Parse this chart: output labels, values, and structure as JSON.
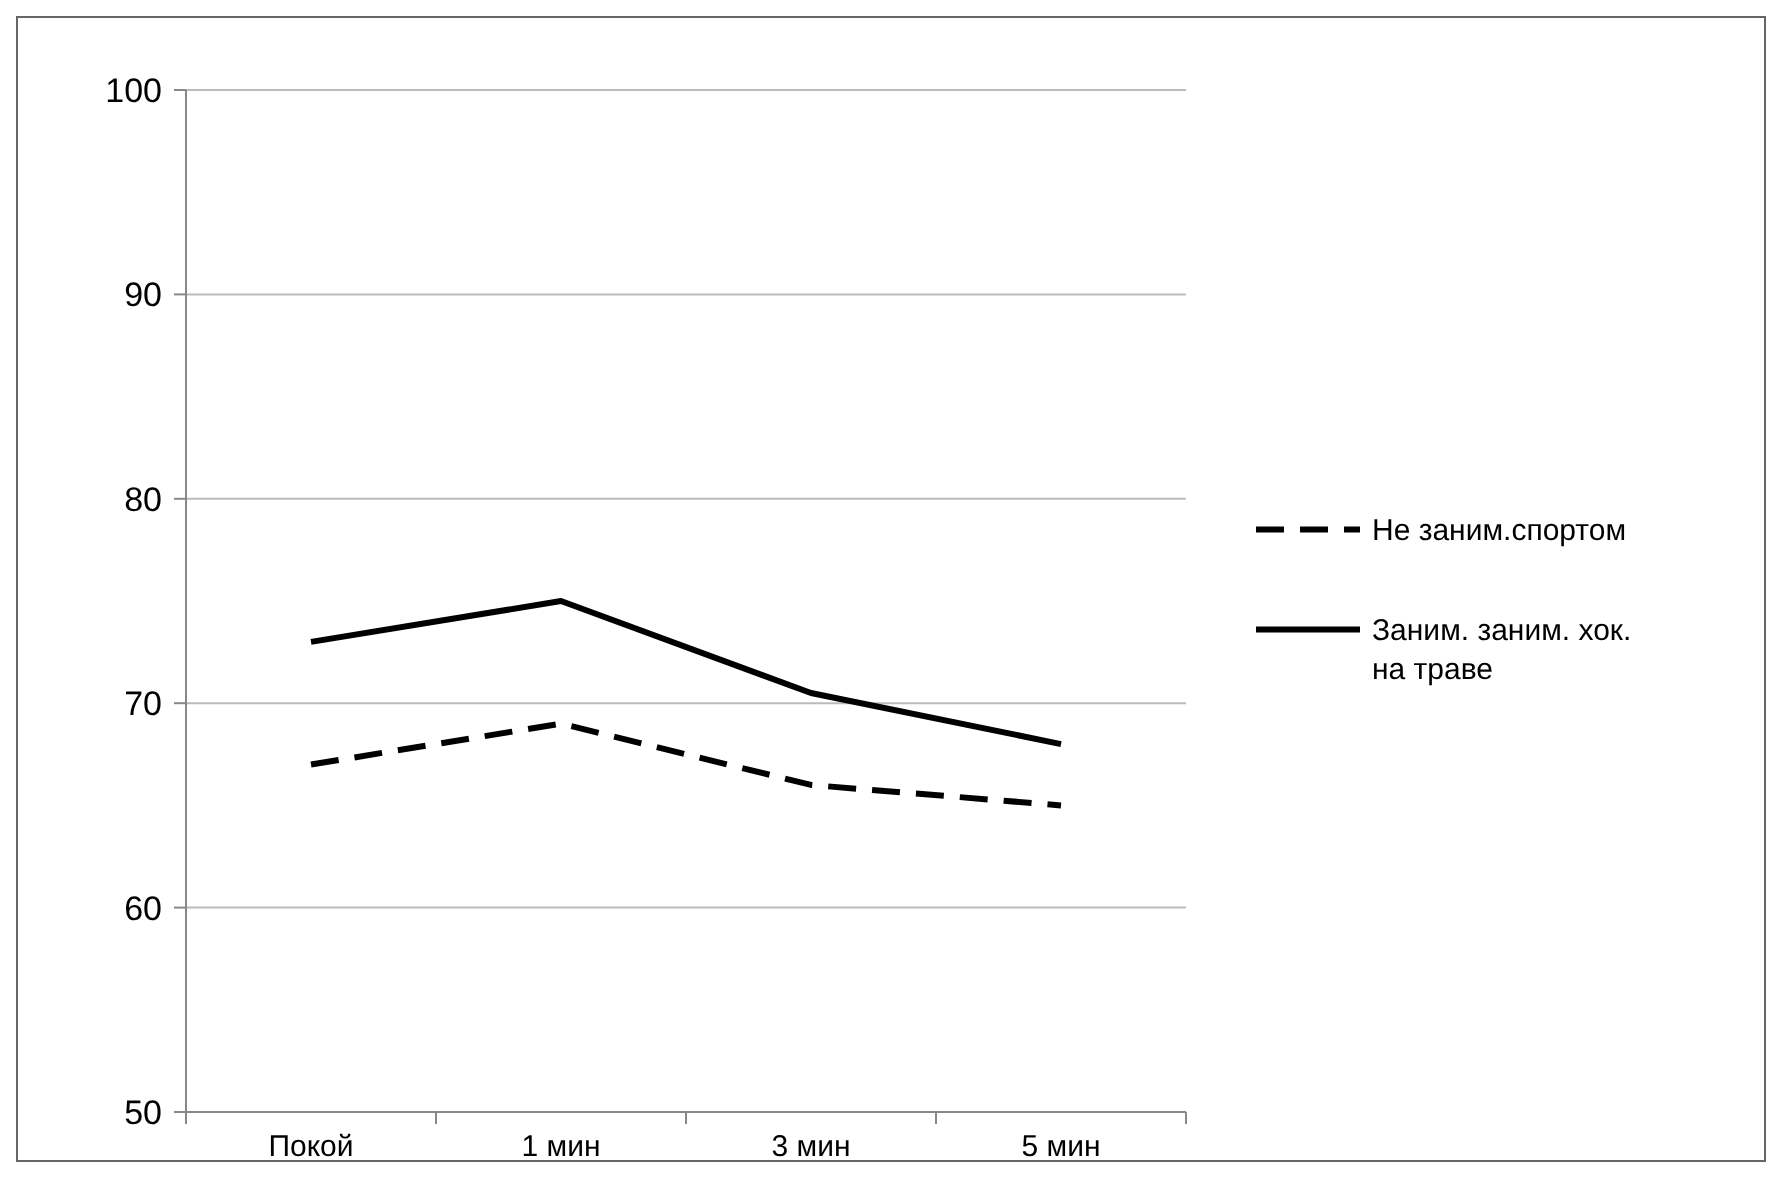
{
  "chart_data": {
    "type": "line",
    "categories": [
      "Покой",
      "1 мин",
      "3 мин",
      "5 мин"
    ],
    "series": [
      {
        "name": "Не заним.спортом",
        "color": "#000000",
        "line_style": "dashed",
        "values": [
          67,
          69,
          66,
          65
        ]
      },
      {
        "name": "Заним. заним. хок. на траве",
        "color": "#000000",
        "line_style": "solid",
        "values": [
          73,
          75,
          70.5,
          68
        ]
      }
    ],
    "ylim": [
      50,
      100
    ],
    "yticks": [
      50,
      60,
      70,
      80,
      90,
      100
    ],
    "grid": "y",
    "legend": "right",
    "marker": "none"
  }
}
